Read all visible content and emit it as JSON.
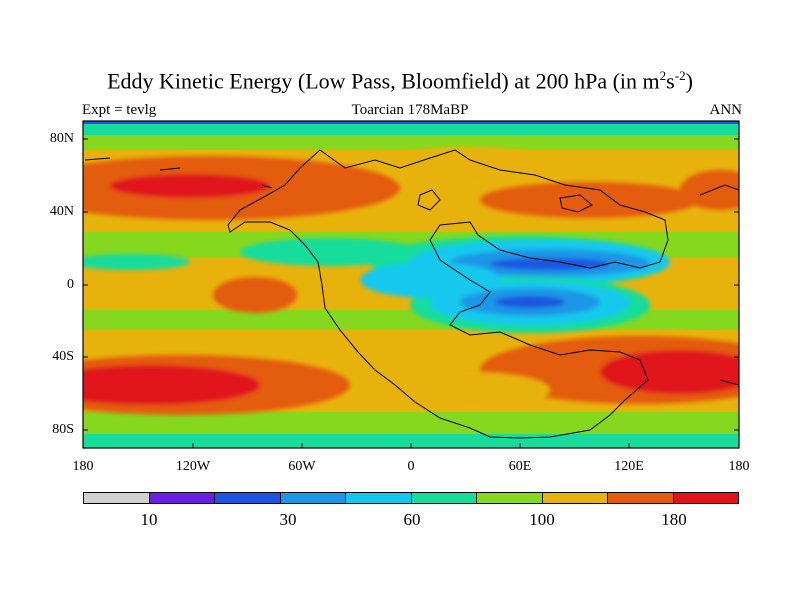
{
  "title": {
    "main": "Eddy Kinetic Energy (Low Pass, Bloomfield) at 200 hPa (in m",
    "sup1": "2",
    "mid": "s",
    "sup2": "-2",
    "end": ")"
  },
  "subtitle_left": "Expt = tevlg",
  "subtitle_center": "Toarcian 178MaBP",
  "subtitle_right": "ANN",
  "lat_labels": [
    "80N",
    "40N",
    "0",
    "40S",
    "80S"
  ],
  "lon_labels": [
    "180",
    "120W",
    "60W",
    "0",
    "60E",
    "120E",
    "180"
  ],
  "colorbar": {
    "colors": [
      "#d0d0d0",
      "#6a20e0",
      "#1e56e0",
      "#1e96e6",
      "#12c8ee",
      "#18dc9c",
      "#86d81e",
      "#e8b20c",
      "#e45c10",
      "#e0141a"
    ],
    "labels": [
      "10",
      "30",
      "60",
      "100",
      "180"
    ]
  }
}
